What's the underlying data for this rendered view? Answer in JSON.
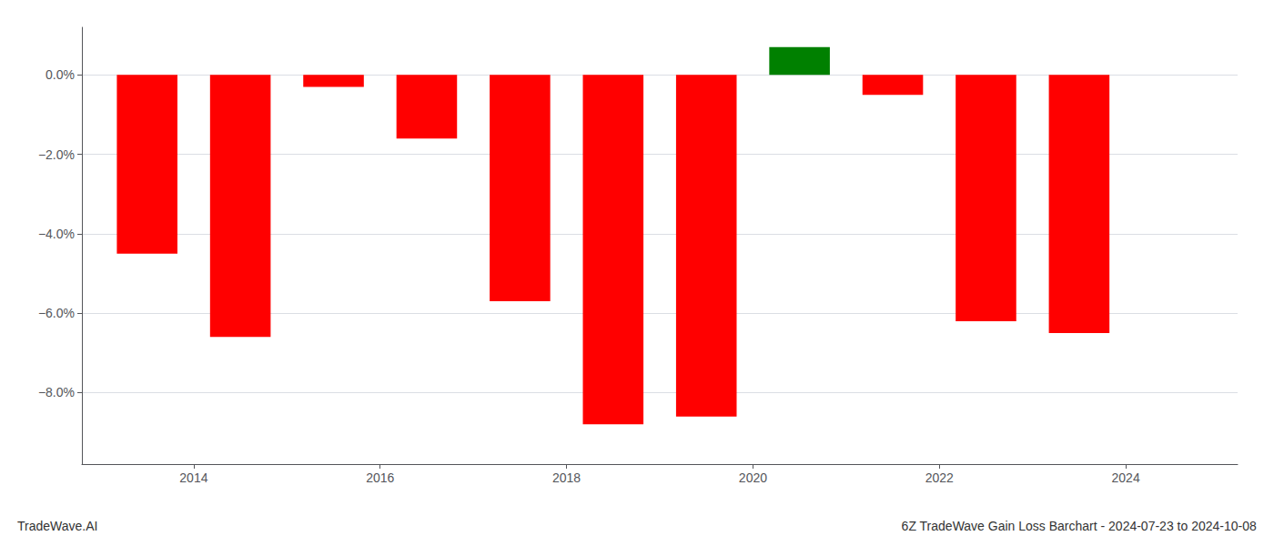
{
  "chart_data": {
    "type": "bar",
    "title": "6Z TradeWave Gain Loss Barchart - 2024-07-23 to 2024-10-08",
    "annotations": [
      "TradeWave.AI"
    ],
    "x": [
      2013.5,
      2014.5,
      2015.5,
      2016.5,
      2017.5,
      2018.5,
      2019.5,
      2020.5,
      2021.5,
      2022.5,
      2023.5
    ],
    "values": [
      -4.5,
      -6.6,
      -0.3,
      -1.6,
      -5.7,
      -8.8,
      -8.6,
      0.7,
      -0.5,
      -6.2,
      -6.5
    ],
    "colors": [
      "#ff0000",
      "#ff0000",
      "#ff0000",
      "#ff0000",
      "#ff0000",
      "#ff0000",
      "#ff0000",
      "#008000",
      "#ff0000",
      "#ff0000",
      "#ff0000"
    ],
    "xlim": [
      2012.8,
      2025.2
    ],
    "xticks": [
      2014,
      2016,
      2018,
      2020,
      2022,
      2024
    ],
    "ylim": [
      -9.8,
      1.2
    ],
    "yticks": [
      {
        "value": 0.0,
        "label": "0.0%"
      },
      {
        "value": -2.0,
        "label": "−2.0%"
      },
      {
        "value": -4.0,
        "label": "−4.0%"
      },
      {
        "value": -6.0,
        "label": "−6.0%"
      },
      {
        "value": -8.0,
        "label": "−8.0%"
      }
    ],
    "grid": "y"
  }
}
